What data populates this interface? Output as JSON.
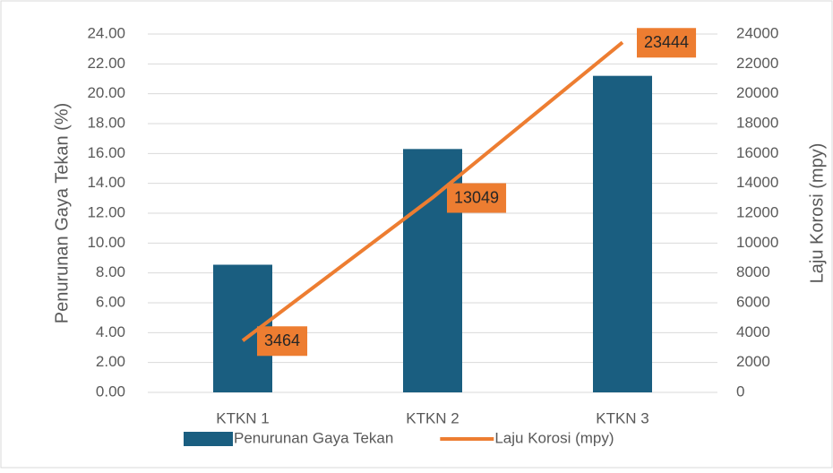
{
  "chart_data": {
    "type": "bar",
    "categories": [
      "KTKN 1",
      "KTKN 2",
      "KTKN 3"
    ],
    "series": [
      {
        "name": "Penurunan Gaya Tekan",
        "color": "#1a5e80",
        "values": [
          8.55,
          16.3,
          21.2
        ]
      },
      {
        "name": "Laju Korosi (mpy)",
        "color": "#ed7d31",
        "type": "line",
        "axis": "y2",
        "values": [
          3464,
          13049,
          23444
        ]
      }
    ],
    "ylabel": "Penurunan Gaya Tekan (%)",
    "y2label": "Laju Korosi (mpy)",
    "ylim": [
      0,
      24
    ],
    "yticks": [
      {
        "value": 0,
        "label": "0.00"
      },
      {
        "value": 2,
        "label": "2.00"
      },
      {
        "value": 4,
        "label": "4.00"
      },
      {
        "value": 6,
        "label": "6.00"
      },
      {
        "value": 8,
        "label": "8.00"
      },
      {
        "value": 10,
        "label": "10.00"
      },
      {
        "value": 12,
        "label": "12.00"
      },
      {
        "value": 14,
        "label": "14.00"
      },
      {
        "value": 16,
        "label": "16.00"
      },
      {
        "value": 18,
        "label": "18.00"
      },
      {
        "value": 20,
        "label": "20.00"
      },
      {
        "value": 22,
        "label": "22.00"
      },
      {
        "value": 24,
        "label": "24.00"
      }
    ],
    "y2lim": [
      0,
      24000
    ],
    "y2ticks": [
      0,
      2000,
      4000,
      6000,
      8000,
      10000,
      12000,
      14000,
      16000,
      18000,
      20000,
      22000,
      24000
    ],
    "grid": true,
    "legend": "bottom",
    "data_labels_series": 1
  }
}
